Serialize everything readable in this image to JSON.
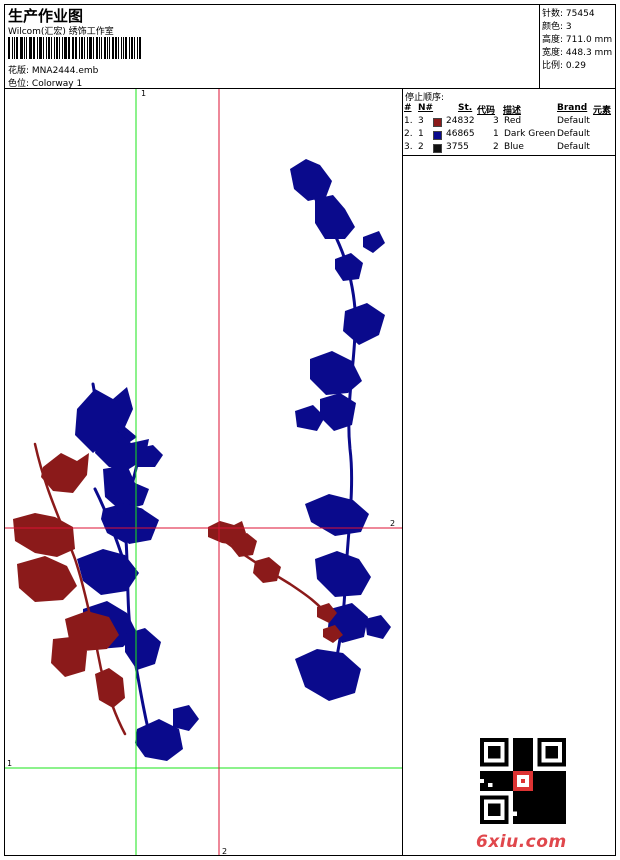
{
  "header": {
    "title": "生产作业图",
    "studio": "Wilcom(汇宏) 绣饰工作室",
    "design_label": "花版:",
    "design_value": "MNA2444.emb",
    "color_label": "色位:",
    "color_value": "Colorway 1"
  },
  "stats": [
    {
      "label": "针数:",
      "value": "75454"
    },
    {
      "label": "颜色:",
      "value": "3"
    },
    {
      "label": "高度:",
      "value": "711.0 mm"
    },
    {
      "label": "宽度:",
      "value": "448.3 mm"
    },
    {
      "label": "比例:",
      "value": "0.29"
    }
  ],
  "stop_sequence": {
    "title": "停止顺序:",
    "headers": {
      "hash": "#",
      "n": "N#",
      "st": "St.",
      "code": "代码",
      "desc": "描述",
      "brand": "Brand",
      "elem": "元素"
    },
    "rows": [
      {
        "num": "1.",
        "n": "3",
        "swatch": "#8b1a1a",
        "st": "24832",
        "code": "3",
        "desc": "Red",
        "brand": "Default"
      },
      {
        "num": "2.",
        "n": "1",
        "swatch": "#0a0a8c",
        "st": "46865",
        "code": "1",
        "desc": "Dark Green",
        "brand": "Default"
      },
      {
        "num": "3.",
        "n": "2",
        "swatch": "#111111",
        "st": "3755",
        "code": "2",
        "desc": "Blue",
        "brand": "Default"
      }
    ]
  },
  "axis_labels": {
    "green_v": "1",
    "green_h": "1",
    "red_h": "2",
    "red_v": "2"
  },
  "colors": {
    "green": "#19e619",
    "red": "#dd1133",
    "embroidery_red": "#8b1a1a",
    "embroidery_blue": "#0a0a8c"
  },
  "watermark": "6xiu.com"
}
